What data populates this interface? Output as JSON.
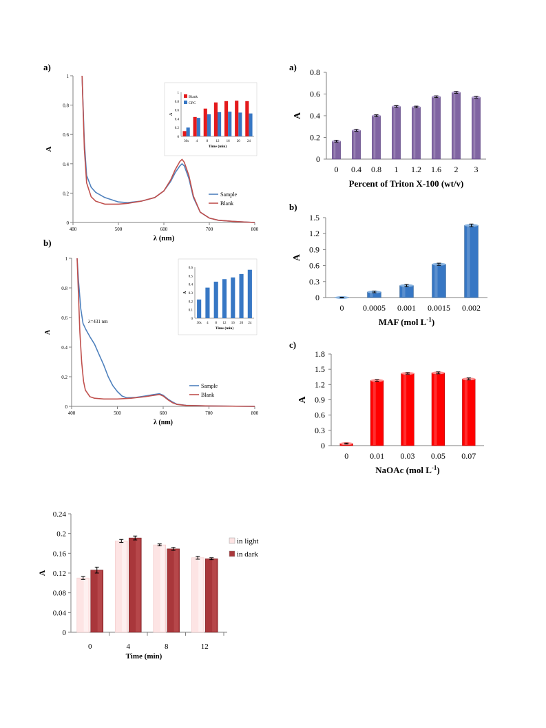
{
  "chart_data": [
    {
      "id": "spectrum_a",
      "type": "line",
      "panel_label": "a)",
      "xlabel": "λ (nm)",
      "ylabel": "A",
      "xlim": [
        400,
        800
      ],
      "ylim": [
        0,
        1
      ],
      "xticks": [
        "400",
        "500",
        "600",
        "700",
        "800"
      ],
      "yticks": [
        "0",
        "0.2",
        "0.4",
        "0.6",
        "0.8",
        "1"
      ],
      "legend_position": "right",
      "series": [
        {
          "name": "Sample",
          "color": "#4f81bd",
          "x": [
            420,
            425,
            430,
            440,
            450,
            470,
            500,
            520,
            550,
            580,
            600,
            615,
            625,
            635,
            640,
            645,
            655,
            665,
            680,
            700,
            720,
            750,
            780,
            800
          ],
          "y": [
            1.0,
            0.55,
            0.32,
            0.24,
            0.205,
            0.17,
            0.14,
            0.135,
            0.145,
            0.17,
            0.215,
            0.28,
            0.34,
            0.385,
            0.4,
            0.385,
            0.3,
            0.17,
            0.07,
            0.03,
            0.015,
            0.008,
            0.003,
            0.0
          ]
        },
        {
          "name": "Blank",
          "color": "#c0504d",
          "x": [
            420,
            425,
            430,
            440,
            450,
            470,
            500,
            520,
            550,
            580,
            600,
            615,
            625,
            635,
            640,
            645,
            655,
            665,
            680,
            700,
            720,
            750,
            780,
            800
          ],
          "y": [
            1.0,
            0.5,
            0.27,
            0.175,
            0.145,
            0.125,
            0.125,
            0.13,
            0.145,
            0.17,
            0.215,
            0.29,
            0.36,
            0.415,
            0.43,
            0.41,
            0.32,
            0.18,
            0.07,
            0.03,
            0.015,
            0.008,
            0.003,
            0.0
          ]
        }
      ],
      "inset": {
        "type": "bar",
        "categories": [
          "30s",
          "4",
          "8",
          "12",
          "16",
          "20",
          "24"
        ],
        "xlabel": "Time (min)",
        "ylabel": "A",
        "ylim": [
          0,
          1
        ],
        "yticks": [
          "0",
          "0.2",
          "0.4",
          "0.6",
          "0.8",
          "1"
        ],
        "legend_position": "top-left",
        "series": [
          {
            "name": "Blank",
            "color": "#e41a1c",
            "values": [
              0.12,
              0.44,
              0.63,
              0.77,
              0.8,
              0.81,
              0.8
            ]
          },
          {
            "name": "CPC",
            "color": "#3777c4",
            "values": [
              0.2,
              0.42,
              0.5,
              0.55,
              0.56,
              0.54,
              0.52
            ]
          }
        ]
      }
    },
    {
      "id": "spectrum_b",
      "type": "line",
      "panel_label": "b)",
      "xlabel": "λ (nm)",
      "ylabel": "A",
      "xlim": [
        400,
        800
      ],
      "ylim": [
        0,
        1
      ],
      "xticks": [
        "400",
        "500",
        "600",
        "700",
        "800"
      ],
      "yticks": [
        "0",
        "0.2",
        "0.4",
        "0.6",
        "0.8",
        "1"
      ],
      "annotation": "λ=431 nm",
      "legend_position": "right",
      "series": [
        {
          "name": "Sample",
          "color": "#4f81bd",
          "x": [
            412,
            415,
            420,
            425,
            431,
            440,
            450,
            460,
            470,
            480,
            490,
            500,
            510,
            520,
            540,
            560,
            580,
            592,
            600,
            610,
            620,
            630,
            650,
            700,
            800
          ],
          "y": [
            1.0,
            0.85,
            0.66,
            0.56,
            0.52,
            0.47,
            0.42,
            0.35,
            0.28,
            0.2,
            0.14,
            0.1,
            0.07,
            0.058,
            0.06,
            0.07,
            0.08,
            0.085,
            0.075,
            0.05,
            0.03,
            0.015,
            0.007,
            0.003,
            0.0
          ]
        },
        {
          "name": "Blank",
          "color": "#c0504d",
          "x": [
            412,
            415,
            418,
            422,
            426,
            430,
            440,
            450,
            470,
            500,
            530,
            560,
            580,
            592,
            600,
            610,
            620,
            630,
            650,
            700,
            800
          ],
          "y": [
            1.0,
            0.75,
            0.5,
            0.3,
            0.17,
            0.11,
            0.065,
            0.055,
            0.05,
            0.05,
            0.055,
            0.065,
            0.075,
            0.08,
            0.07,
            0.045,
            0.025,
            0.013,
            0.006,
            0.003,
            0.0
          ]
        }
      ],
      "inset": {
        "type": "bar",
        "categories": [
          "30s",
          "4",
          "8",
          "12",
          "16",
          "20",
          "24"
        ],
        "xlabel": "Time (min)",
        "ylabel": "A",
        "ylim": [
          0,
          0.6
        ],
        "yticks": [
          "0",
          "0.1",
          "0.2",
          "0.3",
          "0.4",
          "0.5",
          "0.6"
        ],
        "series": [
          {
            "color": "#3777c4",
            "values": [
              0.22,
              0.36,
              0.43,
              0.46,
              0.48,
              0.52,
              0.57
            ]
          }
        ]
      }
    },
    {
      "id": "triton",
      "type": "bar",
      "panel_label": "a)",
      "xlabel": "Percent of Triton X-100 (wt/v)",
      "ylabel": "A",
      "ylim": [
        0,
        0.8
      ],
      "yticks": [
        "0",
        "0.2",
        "0.4",
        "0.6",
        "0.8"
      ],
      "categories": [
        "0",
        "0.4",
        "0.8",
        "1",
        "1.2",
        "1.6",
        "2",
        "3"
      ],
      "values": [
        0.165,
        0.265,
        0.4,
        0.485,
        0.48,
        0.575,
        0.615,
        0.57
      ],
      "errors": [
        0.008,
        0.008,
        0.008,
        0.008,
        0.008,
        0.008,
        0.008,
        0.008
      ],
      "color": "#8064a2"
    },
    {
      "id": "maf",
      "type": "bar",
      "panel_label": "b)",
      "xlabel": "MAF (mol L",
      "xlabel_sup": "-1",
      "xlabel_end": ")",
      "ylabel": "A",
      "ylim": [
        0,
        1.5
      ],
      "yticks": [
        "0",
        "0.3",
        "0.6",
        "0.9",
        "1.2",
        "1.5"
      ],
      "categories": [
        "0",
        "0.0005",
        "0.001",
        "0.0015",
        "0.002"
      ],
      "values": [
        0.0,
        0.105,
        0.225,
        0.625,
        1.355
      ],
      "errors": [
        0.005,
        0.015,
        0.02,
        0.02,
        0.025
      ],
      "color": "#3777c4"
    },
    {
      "id": "naoac",
      "type": "bar",
      "panel_label": "c)",
      "xlabel": "NaOAc (mol L",
      "xlabel_sup": "-1",
      "xlabel_end": ")",
      "ylabel": "A",
      "ylim": [
        0,
        1.8
      ],
      "yticks": [
        "0",
        "0.3",
        "0.6",
        "0.9",
        "1.2",
        "1.5",
        "1.8"
      ],
      "categories": [
        "0",
        "0.01",
        "0.03",
        "0.05",
        "0.07"
      ],
      "values": [
        0.04,
        1.28,
        1.42,
        1.43,
        1.31
      ],
      "errors": [
        0.01,
        0.015,
        0.015,
        0.02,
        0.02
      ],
      "color": "#ff0000"
    },
    {
      "id": "light_dark",
      "type": "bar",
      "xlabel": "Time (min)",
      "ylabel": "A",
      "ylim": [
        0,
        0.24
      ],
      "yticks": [
        "0",
        "0.04",
        "0.08",
        "0.12",
        "0.16",
        "0.2",
        "0.24"
      ],
      "categories": [
        "0",
        "4",
        "8",
        "12"
      ],
      "legend_position": "right",
      "series": [
        {
          "name": "in light",
          "color": "#fde4e4",
          "values": [
            0.11,
            0.185,
            0.177,
            0.151
          ],
          "errors": [
            0.003,
            0.003,
            0.002,
            0.003
          ]
        },
        {
          "name": "in dark",
          "color": "#a9373b",
          "values": [
            0.126,
            0.191,
            0.169,
            0.149
          ],
          "errors": [
            0.006,
            0.004,
            0.003,
            0.002
          ]
        }
      ]
    }
  ]
}
